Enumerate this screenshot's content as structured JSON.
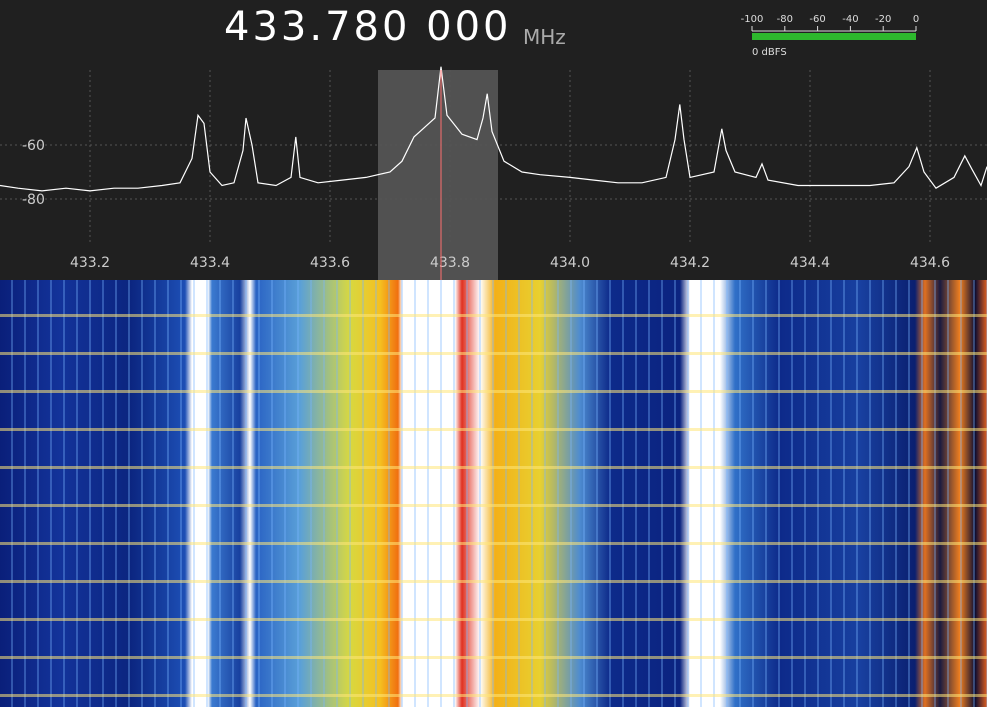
{
  "frequency_display": {
    "value": "433.780 000",
    "unit": "MHz"
  },
  "signal_meter": {
    "range": [
      -100,
      0
    ],
    "ticks": [
      -100,
      -80,
      -60,
      -40,
      -20,
      0
    ],
    "label": "0 dBFS"
  },
  "chart_data": {
    "type": "line",
    "x": [
      433.05,
      433.08,
      433.12,
      433.16,
      433.2,
      433.24,
      433.28,
      433.32,
      433.35,
      433.37,
      433.38,
      433.39,
      433.4,
      433.42,
      433.44,
      433.455,
      433.46,
      433.47,
      433.48,
      433.51,
      433.535,
      433.543,
      433.55,
      433.58,
      433.62,
      433.66,
      433.7,
      433.72,
      433.74,
      433.76,
      433.775,
      433.785,
      433.795,
      433.82,
      433.845,
      433.855,
      433.862,
      433.87,
      433.89,
      433.92,
      433.95,
      434.0,
      434.04,
      434.08,
      434.12,
      434.16,
      434.175,
      434.183,
      434.19,
      434.2,
      434.24,
      434.253,
      434.26,
      434.275,
      434.31,
      434.32,
      434.33,
      434.38,
      434.42,
      434.46,
      434.5,
      434.54,
      434.565,
      434.578,
      434.59,
      434.61,
      434.64,
      434.658,
      434.67,
      434.685,
      434.695
    ],
    "series": [
      {
        "color": "#ffffff",
        "values": [
          -75,
          -76,
          -77,
          -76,
          -77,
          -76,
          -76,
          -75,
          -74,
          -65,
          -49,
          -52,
          -70,
          -75,
          -74,
          -62,
          -50,
          -60,
          -74,
          -75,
          -72,
          -57,
          -72,
          -74,
          -73,
          -72,
          -70,
          -66,
          -57,
          -53,
          -50,
          -31,
          -49,
          -56,
          -58,
          -50,
          -41,
          -55,
          -66,
          -70,
          -71,
          -72,
          -73,
          -74,
          -74,
          -72,
          -58,
          -45,
          -58,
          -72,
          -70,
          -54,
          -62,
          -70,
          -72,
          -67,
          -73,
          -75,
          -75,
          -75,
          -75,
          -74,
          -68,
          -61,
          -70,
          -76,
          -72,
          -64,
          -69,
          -75,
          -68
        ]
      }
    ],
    "xlim": [
      433.05,
      434.695
    ],
    "ylim": [
      -110,
      -30
    ],
    "xticks": [
      433.2,
      433.4,
      433.6,
      433.8,
      {
        "value": 434,
        "label": "434.0"
      },
      434.2,
      434.4,
      434.6
    ],
    "yticks": [
      -60,
      -80
    ],
    "grid": true,
    "passband": [
      433.68,
      433.88
    ],
    "center_line": 433.785
  }
}
